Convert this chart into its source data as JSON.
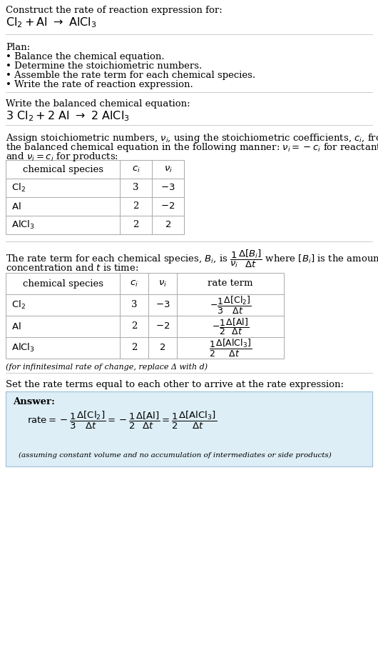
{
  "title_line1": "Construct the rate of reaction expression for:",
  "plan_header": "Plan:",
  "plan_items": [
    "• Balance the chemical equation.",
    "• Determine the stoichiometric numbers.",
    "• Assemble the rate term for each chemical species.",
    "• Write the rate of reaction expression."
  ],
  "balanced_header": "Write the balanced chemical equation:",
  "set_equal_text": "Set the rate terms equal to each other to arrive at the rate expression:",
  "infinitesimal_note": "(for infinitesimal rate of change, replace Δ with d)",
  "answer_label": "Answer:",
  "answer_note": "(assuming constant volume and no accumulation of intermediates or side products)",
  "answer_box_color": "#ddeef6",
  "answer_box_border": "#aac8dc",
  "bg_color": "#ffffff",
  "text_color": "#000000",
  "table_line_color": "#aaaaaa",
  "separator_color": "#cccccc",
  "font_size": 9.5,
  "font_size_eq": 11.5
}
